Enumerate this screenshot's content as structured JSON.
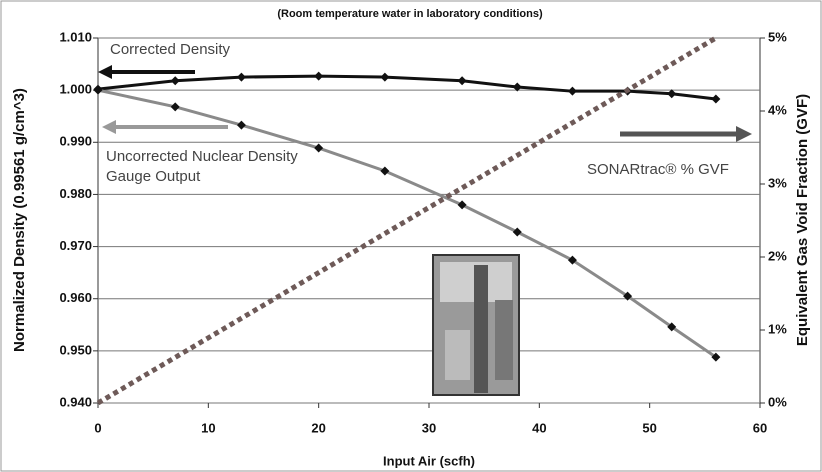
{
  "chart_data": {
    "type": "line",
    "title": "(Room temperature water in laboratory conditions)",
    "x_label": "Input Air (scfh)",
    "y_label": "Normalized Density (0.99561 g/cm^3)",
    "y2_label": "Equivalent Gas Void Fraction (GVF)",
    "annotations": [
      "Corrected Density",
      "Uncorrected Nuclear Density Gauge Output",
      "SONARtrac® % GVF"
    ],
    "xlim": [
      0,
      60
    ],
    "xticks": [
      0,
      10,
      20,
      30,
      40,
      50,
      60
    ],
    "ylim": [
      0.94,
      1.01
    ],
    "yticks": [
      {
        "value": 0.94,
        "label": "0.940"
      },
      {
        "value": 0.95,
        "label": "0.950"
      },
      {
        "value": 0.96,
        "label": "0.960"
      },
      {
        "value": 0.97,
        "label": "0.970"
      },
      {
        "value": 0.98,
        "label": "0.980"
      },
      {
        "value": 0.99,
        "label": "0.990"
      },
      {
        "value": 1.0,
        "label": "1.000"
      },
      {
        "value": 1.01,
        "label": "1.010"
      }
    ],
    "y2lim": [
      0,
      5
    ],
    "y2ticks": [
      {
        "value": 0,
        "label": "0%"
      },
      {
        "value": 1,
        "label": "1%"
      },
      {
        "value": 2,
        "label": "2%"
      },
      {
        "value": 3,
        "label": "3%"
      },
      {
        "value": 4,
        "label": "4%"
      },
      {
        "value": 5,
        "label": "5%"
      }
    ],
    "grid": true,
    "series": [
      {
        "name": "Corrected Density",
        "color": "#111111",
        "marker": "diamond",
        "x": [
          0,
          7,
          13,
          20,
          26,
          33,
          38,
          43,
          48,
          52,
          56
        ],
        "values": [
          1.0002,
          1.0018,
          1.0025,
          1.0027,
          1.0025,
          1.0018,
          1.0006,
          0.9998,
          0.9998,
          0.9993,
          0.9983
        ]
      },
      {
        "name": "Uncorrected Nuclear Density Gauge Output",
        "color": "#8a8a8a",
        "marker": "diamond",
        "x": [
          0,
          7,
          13,
          20,
          26,
          33,
          38,
          43,
          48,
          52,
          56
        ],
        "values": [
          1.0,
          0.9968,
          0.9933,
          0.9889,
          0.9845,
          0.978,
          0.9728,
          0.9674,
          0.9605,
          0.9546,
          0.9488
        ]
      },
      {
        "name": "SONARtrac® % GVF",
        "color": "#6e5a58",
        "axis": "y2",
        "dash": "dotted",
        "x": [
          0,
          56
        ],
        "values": [
          0,
          5
        ]
      }
    ]
  }
}
